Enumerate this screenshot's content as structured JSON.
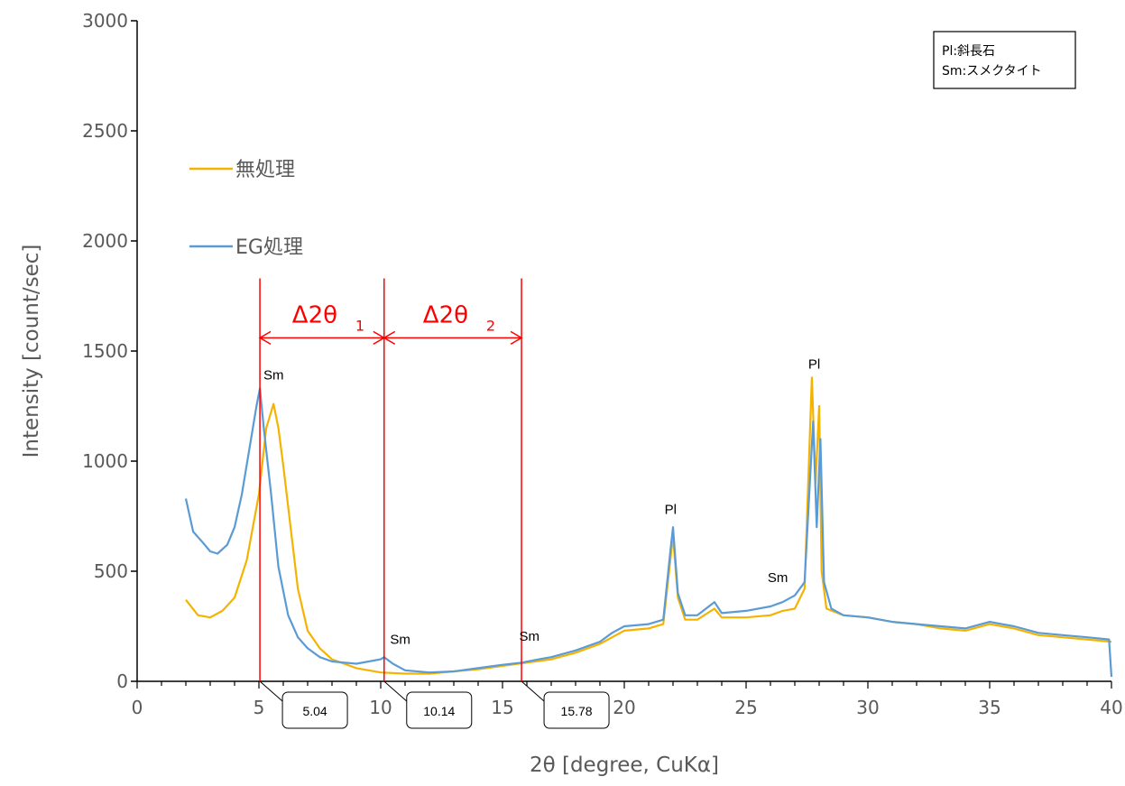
{
  "chart_data": {
    "type": "line",
    "xlabel": "2θ [degree, CuKα]",
    "ylabel": "Intensity [count/sec]",
    "xlim": [
      0,
      40
    ],
    "ylim": [
      0,
      3000
    ],
    "xticks": [
      "0",
      "5",
      "10",
      "15",
      "20",
      "25",
      "30",
      "35",
      "40"
    ],
    "yticks": [
      "0",
      "500",
      "1000",
      "1500",
      "2000",
      "2500",
      "3000"
    ],
    "grid": false,
    "legend_placement": "upper-left",
    "series": [
      {
        "name": "無処理",
        "color": "#f5b301",
        "x": [
          2,
          2.5,
          3,
          3.5,
          4,
          4.5,
          5,
          5.3,
          5.6,
          5.8,
          6,
          6.3,
          6.6,
          7,
          7.5,
          8,
          9,
          10,
          11,
          12,
          13,
          14,
          15,
          16,
          17,
          18,
          19,
          19.5,
          20,
          21,
          21.6,
          21.9,
          22,
          22.2,
          22.5,
          23,
          23.7,
          24,
          25,
          26,
          26.5,
          27,
          27.4,
          27.7,
          27.85,
          28,
          28.1,
          28.3,
          29,
          30,
          31,
          32,
          33,
          34,
          35,
          35.5,
          36,
          37,
          38,
          39,
          40
        ],
        "values": [
          370,
          300,
          290,
          320,
          380,
          550,
          850,
          1150,
          1260,
          1150,
          980,
          700,
          420,
          230,
          150,
          100,
          60,
          40,
          35,
          35,
          45,
          55,
          70,
          85,
          100,
          130,
          170,
          200,
          230,
          240,
          260,
          560,
          660,
          380,
          280,
          280,
          330,
          290,
          290,
          300,
          320,
          330,
          420,
          1380,
          900,
          1250,
          500,
          330,
          300,
          290,
          270,
          260,
          240,
          230,
          260,
          250,
          240,
          210,
          200,
          190,
          180
        ]
      },
      {
        "name": "EG処理",
        "color": "#5b9bd5",
        "x": [
          2,
          2.3,
          2.7,
          3,
          3.3,
          3.7,
          4,
          4.3,
          4.6,
          4.9,
          5.04,
          5.2,
          5.5,
          5.8,
          6.2,
          6.6,
          7,
          7.5,
          8,
          9,
          10,
          10.14,
          10.5,
          11,
          12,
          13,
          14,
          15,
          15.78,
          16.5,
          17,
          18,
          19,
          19.5,
          20,
          21,
          21.6,
          21.9,
          22,
          22.2,
          22.5,
          23,
          23.7,
          24,
          25,
          26,
          26.5,
          27,
          27.4,
          27.75,
          27.9,
          28.05,
          28.2,
          28.5,
          29,
          30,
          31,
          32,
          33,
          34,
          35,
          35.5,
          36,
          37,
          38,
          39,
          39.9,
          40
        ],
        "values": [
          830,
          680,
          630,
          590,
          580,
          620,
          700,
          850,
          1050,
          1250,
          1330,
          1150,
          850,
          520,
          300,
          200,
          150,
          110,
          90,
          80,
          100,
          110,
          80,
          50,
          40,
          45,
          60,
          75,
          85,
          100,
          110,
          140,
          180,
          220,
          250,
          260,
          280,
          600,
          700,
          400,
          300,
          300,
          360,
          310,
          320,
          340,
          360,
          390,
          450,
          1180,
          700,
          1100,
          450,
          330,
          300,
          290,
          270,
          260,
          250,
          240,
          270,
          260,
          250,
          220,
          210,
          200,
          190,
          20
        ]
      }
    ],
    "peak_labels": [
      {
        "text": "Sm",
        "x": 5.6,
        "y": 1370
      },
      {
        "text": "Sm",
        "x": 10.8,
        "y": 170
      },
      {
        "text": "Sm",
        "x": 16.1,
        "y": 185
      },
      {
        "text": "Pl",
        "x": 21.9,
        "y": 760
      },
      {
        "text": "Sm",
        "x": 26.3,
        "y": 450
      },
      {
        "text": "Pl",
        "x": 27.8,
        "y": 1420
      }
    ],
    "marker_lines": [
      {
        "x": 5.04,
        "label": "5.04"
      },
      {
        "x": 10.14,
        "label": "10.14"
      },
      {
        "x": 15.78,
        "label": "15.78"
      }
    ],
    "spans": [
      {
        "from": 5.04,
        "to": 10.14,
        "main": "Δ2θ",
        "sub": "1"
      },
      {
        "from": 10.14,
        "to": 15.78,
        "main": "Δ2θ",
        "sub": "2"
      }
    ],
    "key_box": [
      "Pl:斜長石",
      "Sm:スメクタイト"
    ],
    "marker_color": "#ff0000"
  }
}
